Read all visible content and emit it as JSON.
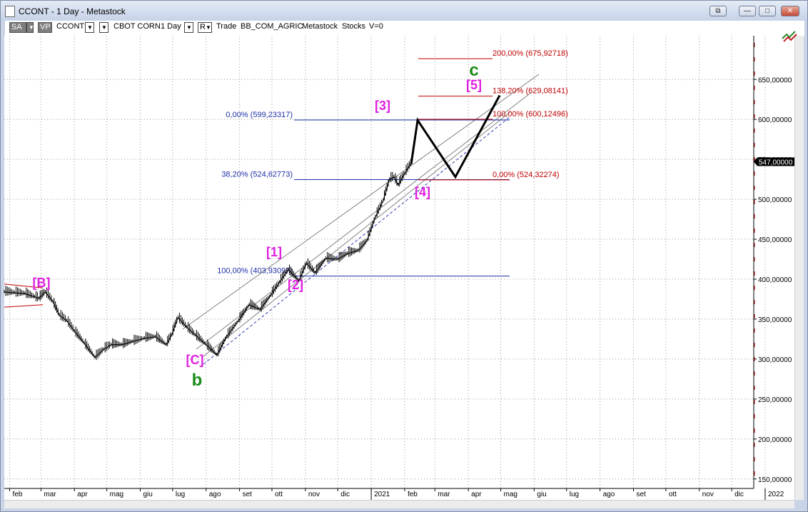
{
  "window": {
    "title": "CCONT - 1 Day - Metastock",
    "buttons": [
      "restore",
      "minimize",
      "maximize",
      "close"
    ]
  },
  "toolbar": {
    "sa_label": "SA",
    "vp_label": "VP",
    "symbol": "CCONT",
    "name": "CBOT CORN",
    "period": "1 Day",
    "r_label": "R",
    "mode": "Trade",
    "group": "BB_COM_AGRIC",
    "source": "Metastock",
    "type": "Stocks",
    "volume": "V=0"
  },
  "colors": {
    "price": "#000000",
    "fib_blue": "#1f2fa6",
    "fib_red": "#c00000",
    "wave_magenta": "#e020e0",
    "wave_green": "#1a8a1a",
    "channel": "#808080",
    "grid": "#9a9a9a"
  },
  "chart_data": {
    "type": "line",
    "title": "",
    "current_price": "547,00000",
    "ylim": [
      135,
      700
    ],
    "y_ticks": [
      "150,00000",
      "200,00000",
      "250,00000",
      "300,00000",
      "350,00000",
      "400,00000",
      "450,00000",
      "500,00000",
      "550,00000",
      "600,00000",
      "650,00000"
    ],
    "x_ticks": [
      "feb",
      "mar",
      "apr",
      "mag",
      "giu",
      "lug",
      "ago",
      "set",
      "ott",
      "nov",
      "dic",
      "2021",
      "feb",
      "mar",
      "apr",
      "mag",
      "giu",
      "lug",
      "ago",
      "set",
      "ott",
      "nov",
      "dic",
      "2022"
    ],
    "series": [
      {
        "x": [
          "2020-01-27",
          "2020-02-15",
          "2020-02-28",
          "2020-03-05",
          "2020-03-12",
          "2020-03-18",
          "2020-03-25",
          "2020-04-01",
          "2020-04-10",
          "2020-04-20",
          "2020-04-28",
          "2020-05-05",
          "2020-05-15",
          "2020-05-25",
          "2020-06-05",
          "2020-06-15",
          "2020-06-25",
          "2020-06-30",
          "2020-07-06",
          "2020-07-14",
          "2020-07-22",
          "2020-08-01",
          "2020-08-11",
          "2020-08-20",
          "2020-08-31",
          "2020-09-10",
          "2020-09-20",
          "2020-09-30",
          "2020-10-08",
          "2020-10-16",
          "2020-10-26",
          "2020-11-02",
          "2020-11-10",
          "2020-11-20",
          "2020-12-01",
          "2020-12-10",
          "2020-12-20",
          "2020-12-28",
          "2021-01-05",
          "2021-01-12",
          "2021-01-18",
          "2021-01-22",
          "2021-01-26",
          "2021-02-01",
          "2021-02-08"
        ],
        "values": [
          384,
          382,
          376,
          384,
          372,
          355,
          348,
          335,
          320,
          302,
          312,
          318,
          318,
          322,
          326,
          328,
          318,
          330,
          352,
          340,
          330,
          318,
          305,
          328,
          348,
          368,
          362,
          380,
          396,
          412,
          398,
          420,
          408,
          426,
          425,
          432,
          436,
          448,
          478,
          498,
          525,
          528,
          518,
          532,
          548
        ]
      }
    ],
    "fibonacci": [
      {
        "label": "0,00% (599,23317)",
        "value": 599.23317,
        "color": "blue"
      },
      {
        "label": "38,20% (524,62773)",
        "value": 524.62773,
        "color": "blue"
      },
      {
        "label": "100,00% (403,93097)",
        "value": 403.93097,
        "color": "blue"
      },
      {
        "label": "200,00% (675,92718)",
        "value": 675.92718,
        "color": "red"
      },
      {
        "label": "138,20% (629,08141)",
        "value": 629.08141,
        "color": "red"
      },
      {
        "label": "100,00% (600,12496)",
        "value": 600.12496,
        "color": "red"
      },
      {
        "label": "0,00% (524,32274)",
        "value": 524.32274,
        "color": "red"
      }
    ],
    "projection": {
      "x": [
        "2021-02-07",
        "2021-02-13",
        "2021-03-20",
        "2021-04-30"
      ],
      "values": [
        544,
        599,
        528,
        630
      ]
    },
    "wave_labels": [
      {
        "text": "[B]",
        "color": "magenta"
      },
      {
        "text": "[C]",
        "color": "magenta"
      },
      {
        "text": "b",
        "color": "green"
      },
      {
        "text": "[1]",
        "color": "magenta"
      },
      {
        "text": "[2]",
        "color": "magenta"
      },
      {
        "text": "[3]",
        "color": "magenta"
      },
      {
        "text": "[4]",
        "color": "magenta"
      },
      {
        "text": "[5]",
        "color": "magenta"
      },
      {
        "text": "c",
        "color": "green"
      }
    ]
  }
}
